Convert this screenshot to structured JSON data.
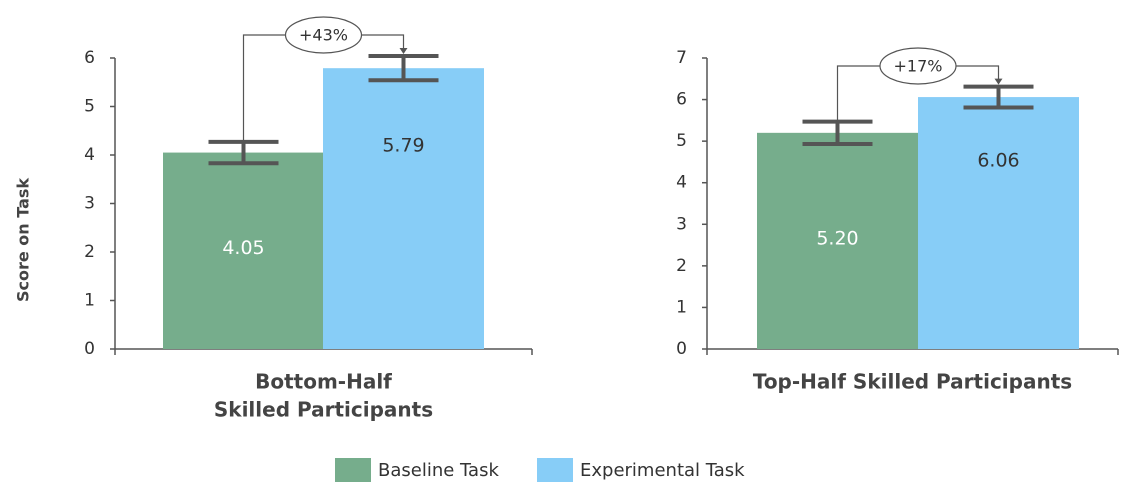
{
  "chart_data": [
    {
      "type": "bar",
      "ylabel": "Score on Task",
      "xlabel": [
        "Bottom-Half",
        "Skilled Participants"
      ],
      "ylim": [
        0,
        6
      ],
      "yticks": [
        0,
        1,
        2,
        3,
        4,
        5,
        6
      ],
      "annotation": "+43%",
      "series": [
        {
          "name": "Baseline Task",
          "color": "#76ad8c",
          "values": [
            4.05
          ],
          "errors": [
            0.22
          ],
          "value_labels": [
            "4.05"
          ]
        },
        {
          "name": "Experimental Task",
          "color": "#87cdf7",
          "values": [
            5.79
          ],
          "errors": [
            0.25
          ],
          "value_labels": [
            "5.79"
          ]
        }
      ]
    },
    {
      "type": "bar",
      "xlabel": [
        "Top-Half Skilled Participants"
      ],
      "ylim": [
        0,
        7
      ],
      "yticks": [
        0,
        1,
        2,
        3,
        4,
        5,
        6,
        7
      ],
      "annotation": "+17%",
      "series": [
        {
          "name": "Baseline Task",
          "color": "#76ad8c",
          "values": [
            5.2
          ],
          "errors": [
            0.27
          ],
          "value_labels": [
            "5.20"
          ]
        },
        {
          "name": "Experimental Task",
          "color": "#87cdf7",
          "values": [
            6.06
          ],
          "errors": [
            0.25
          ],
          "value_labels": [
            "6.06"
          ]
        }
      ]
    }
  ]
}
